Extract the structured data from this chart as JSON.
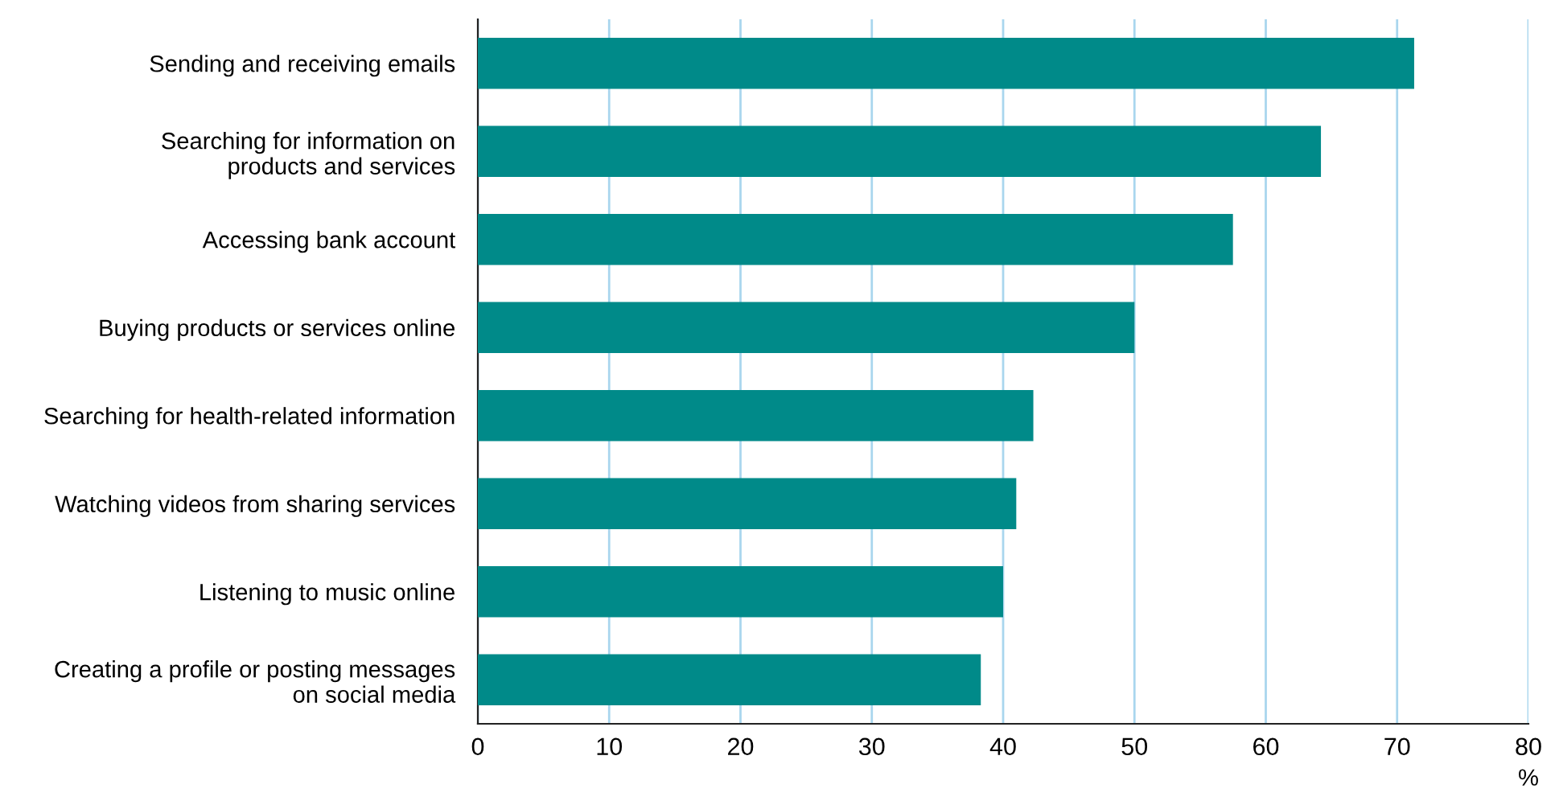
{
  "chart_data": {
    "type": "bar",
    "orientation": "horizontal",
    "categories": [
      "Sending and receiving emails",
      "Searching for information on\nproducts and services",
      "Accessing bank account",
      "Buying products or services online",
      "Searching for health-related information",
      "Watching videos from sharing services",
      "Listening to music online",
      "Creating a profile or posting messages\non social media"
    ],
    "values": [
      71.3,
      64.2,
      57.5,
      50.0,
      42.3,
      41.0,
      40.0,
      38.3
    ],
    "color": "#008a89",
    "xlim": [
      0,
      80
    ],
    "xticks": [
      0,
      10,
      20,
      30,
      40,
      50,
      60,
      70,
      80
    ],
    "xlabel": "%",
    "grid": "x"
  }
}
